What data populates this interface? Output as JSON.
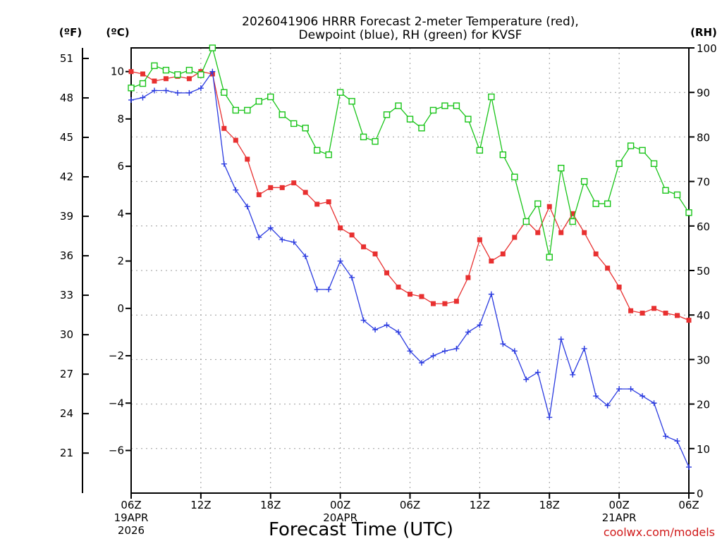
{
  "chart_data": {
    "type": "line",
    "title_lines": [
      "2026041906 HRRR Forecast 2-meter Temperature (red),",
      "Dewpoint (blue), RH (green) for KVSF"
    ],
    "xlabel": "Forecast Time (UTC)",
    "credit": "coolwx.com/models",
    "unit_labels": {
      "fahrenheit": "(ºF)",
      "celsius": "(ºC)",
      "rh": "(RH)"
    },
    "x_range_hours": [
      0,
      48
    ],
    "x_ticks": [
      {
        "hour": 0,
        "lines": [
          "06Z",
          "19APR",
          "2026"
        ]
      },
      {
        "hour": 6,
        "lines": [
          "12Z"
        ]
      },
      {
        "hour": 12,
        "lines": [
          "18Z"
        ]
      },
      {
        "hour": 18,
        "lines": [
          "00Z",
          "20APR"
        ]
      },
      {
        "hour": 24,
        "lines": [
          "06Z"
        ]
      },
      {
        "hour": 30,
        "lines": [
          "12Z"
        ]
      },
      {
        "hour": 36,
        "lines": [
          "18Z"
        ]
      },
      {
        "hour": 42,
        "lines": [
          "00Z",
          "21APR"
        ]
      },
      {
        "hour": 48,
        "lines": [
          "06Z"
        ]
      }
    ],
    "celsius_axis": {
      "range": [
        -7.8,
        11
      ],
      "ticks": [
        -6,
        -4,
        -2,
        0,
        2,
        4,
        6,
        8,
        10
      ]
    },
    "fahrenheit_axis": {
      "ticks": [
        21,
        24,
        27,
        30,
        33,
        36,
        39,
        42,
        45,
        48,
        51
      ]
    },
    "rh_axis": {
      "range": [
        0,
        100
      ],
      "ticks": [
        0,
        10,
        20,
        30,
        40,
        50,
        60,
        70,
        80,
        90,
        100
      ]
    },
    "grid": true,
    "hours": [
      0,
      1,
      2,
      3,
      4,
      5,
      6,
      7,
      8,
      9,
      10,
      11,
      12,
      13,
      14,
      15,
      16,
      17,
      18,
      19,
      20,
      21,
      22,
      23,
      24,
      25,
      26,
      27,
      28,
      29,
      30,
      31,
      32,
      33,
      34,
      35,
      36,
      37,
      38,
      39,
      40,
      41,
      42,
      43,
      44,
      45,
      46,
      47,
      48
    ],
    "series": [
      {
        "key": "temperature",
        "color": "#e83030",
        "marker": "filled-square",
        "axis": "celsius",
        "values": [
          10.0,
          9.9,
          9.6,
          9.7,
          9.8,
          9.7,
          10.0,
          9.9,
          7.6,
          7.1,
          6.3,
          4.8,
          5.1,
          5.1,
          5.3,
          4.9,
          4.4,
          4.5,
          3.4,
          3.1,
          2.6,
          2.3,
          1.5,
          0.9,
          0.6,
          0.5,
          0.2,
          0.2,
          0.3,
          1.3,
          2.9,
          2.0,
          2.3,
          3.0,
          3.7,
          3.2,
          4.3,
          3.2,
          4.0,
          3.2,
          2.3,
          1.7,
          0.9,
          -0.1,
          -0.2,
          0.0,
          -0.2,
          -0.3,
          -0.5
        ]
      },
      {
        "key": "dewpoint",
        "color": "#2a3ae0",
        "marker": "plus",
        "axis": "celsius",
        "values": [
          8.8,
          8.9,
          9.2,
          9.2,
          9.1,
          9.1,
          9.3,
          10.0,
          6.1,
          5.0,
          4.3,
          3.0,
          3.4,
          2.9,
          2.8,
          2.2,
          0.8,
          0.8,
          2.0,
          1.3,
          -0.5,
          -0.9,
          -0.7,
          -1.0,
          -1.8,
          -2.3,
          -2.0,
          -1.8,
          -1.7,
          -1.0,
          -0.7,
          0.6,
          -1.5,
          -1.8,
          -3.0,
          -2.7,
          -4.6,
          -1.3,
          -2.8,
          -1.7,
          -3.7,
          -4.1,
          -3.4,
          -3.4,
          -3.7,
          -4.0,
          -5.4,
          -5.6,
          -6.7
        ]
      },
      {
        "key": "rh",
        "color": "#18c418",
        "marker": "open-square",
        "axis": "rh",
        "values": [
          91,
          92,
          96,
          95,
          94,
          95,
          94,
          100,
          90,
          86,
          86,
          88,
          89,
          85,
          83,
          82,
          77,
          76,
          90,
          88,
          80,
          79,
          85,
          87,
          84,
          82,
          86,
          87,
          87,
          84,
          77,
          89,
          76,
          71,
          61,
          65,
          53,
          73,
          61,
          70,
          65,
          65,
          74,
          78,
          77,
          74,
          68,
          67,
          63
        ]
      }
    ]
  }
}
